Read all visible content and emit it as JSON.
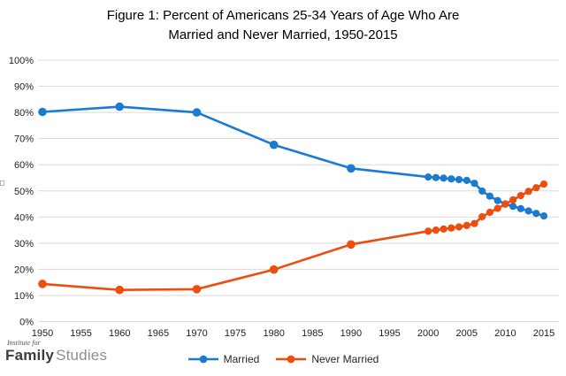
{
  "title": {
    "line1": "Figure 1: Percent of Americans 25-34 Years of Age Who Are",
    "line2": "Married and Never Married, 1950-2015"
  },
  "colors": {
    "married": "#1B7BD3",
    "never_married": "#EE4D0D",
    "gridline": "#DADADA",
    "axis_text": "#222222",
    "title_text": "#000000"
  },
  "chart_data": {
    "type": "line",
    "title": "Figure 1: Percent of Americans 25-34 Years of Age Who Are Married and Never Married, 1950-2015",
    "xlim": [
      1950,
      2015
    ],
    "ylim": [
      0,
      100
    ],
    "grid": "horizontal",
    "legend_position": "bottom-center",
    "x_ticks": [
      1950,
      1955,
      1960,
      1965,
      1970,
      1975,
      1980,
      1985,
      1990,
      1995,
      2000,
      2005,
      2010,
      2015
    ],
    "y_tick_values": [
      0,
      10,
      20,
      30,
      40,
      50,
      60,
      70,
      80,
      90,
      100
    ],
    "y_tick_labels": [
      "0%",
      "10%",
      "20%",
      "30%",
      "40%",
      "50%",
      "60%",
      "70%",
      "80%",
      "90%",
      "100%"
    ],
    "series": [
      {
        "name": "Married",
        "color": "#1B7BD3",
        "points": [
          [
            1950,
            80.2
          ],
          [
            1960,
            82.2
          ],
          [
            1970,
            80.0
          ],
          [
            1980,
            67.6
          ],
          [
            1990,
            58.6
          ],
          [
            2000,
            55.3
          ],
          [
            2001,
            55.1
          ],
          [
            2002,
            54.9
          ],
          [
            2003,
            54.6
          ],
          [
            2004,
            54.3
          ],
          [
            2005,
            54.0
          ],
          [
            2006,
            52.9
          ],
          [
            2007,
            49.9
          ],
          [
            2008,
            48.0
          ],
          [
            2009,
            46.3
          ],
          [
            2010,
            45.0
          ],
          [
            2011,
            44.1
          ],
          [
            2012,
            43.2
          ],
          [
            2013,
            42.3
          ],
          [
            2014,
            41.4
          ],
          [
            2015,
            40.4
          ]
        ]
      },
      {
        "name": "Never Married",
        "color": "#EE4D0D",
        "points": [
          [
            1950,
            14.4
          ],
          [
            1960,
            12.1
          ],
          [
            1970,
            12.4
          ],
          [
            1980,
            19.9
          ],
          [
            1990,
            29.5
          ],
          [
            2000,
            34.6
          ],
          [
            2001,
            35.0
          ],
          [
            2002,
            35.4
          ],
          [
            2003,
            35.8
          ],
          [
            2004,
            36.2
          ],
          [
            2005,
            36.8
          ],
          [
            2006,
            37.5
          ],
          [
            2007,
            40.1
          ],
          [
            2008,
            41.8
          ],
          [
            2009,
            43.3
          ],
          [
            2010,
            44.9
          ],
          [
            2011,
            46.6
          ],
          [
            2012,
            48.2
          ],
          [
            2013,
            49.8
          ],
          [
            2014,
            51.2
          ],
          [
            2015,
            52.6
          ]
        ]
      }
    ]
  },
  "legend": {
    "items": [
      {
        "label": "Married"
      },
      {
        "label": "Never Married"
      }
    ]
  },
  "logo": {
    "top": "Institute for",
    "bold": "Family",
    "light": "Studies"
  }
}
